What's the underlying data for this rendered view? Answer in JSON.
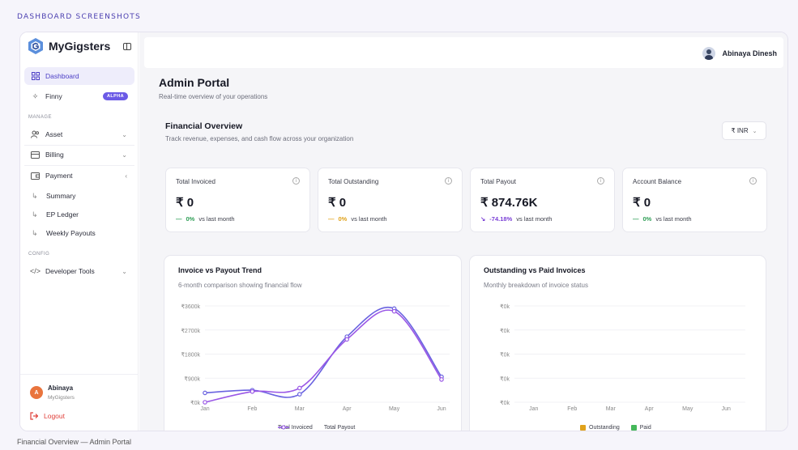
{
  "page_label": "DASHBOARD SCREENSHOTS",
  "caption": "Financial Overview — Admin Portal",
  "brand": {
    "name": "MyGigsters"
  },
  "sidebar": {
    "top_items": [
      {
        "label": "Dashboard",
        "icon": "grid-icon",
        "active": true
      },
      {
        "label": "Finny",
        "icon": "sparkle-icon",
        "badge": "ALPHA"
      }
    ],
    "manage_label": "MANAGE",
    "manage_items": [
      {
        "label": "Asset",
        "icon": "users-icon",
        "chevron": "⌄"
      },
      {
        "label": "Billing",
        "icon": "card-icon",
        "chevron": "⌄"
      },
      {
        "label": "Payment",
        "icon": "wallet-icon",
        "chevron": "‹"
      }
    ],
    "payment_sub": [
      {
        "label": "Summary"
      },
      {
        "label": "EP Ledger"
      },
      {
        "label": "Weekly Payouts"
      }
    ],
    "config_label": "CONFIG",
    "config_items": [
      {
        "label": "Developer Tools",
        "icon": "code-icon",
        "chevron": "⌄"
      }
    ],
    "user": {
      "initial": "A",
      "name": "Abinaya",
      "org": "MyGigsters"
    },
    "logout_label": "Logout"
  },
  "header": {
    "user_name": "Abinaya Dinesh"
  },
  "main": {
    "title": "Admin Portal",
    "subtitle": "Real-time overview of your operations",
    "section_title": "Financial Overview",
    "section_subtitle": "Track revenue, expenses, and cash flow across your organization",
    "currency": "₹ INR"
  },
  "kpis": [
    {
      "label": "Total Invoiced",
      "value": "₹ 0",
      "change": "0%",
      "change_icon": "—",
      "change_color": "#2e9e55",
      "vs": "vs last month"
    },
    {
      "label": "Total Outstanding",
      "value": "₹ 0",
      "change": "0%",
      "change_icon": "—",
      "change_color": "#e0a21b",
      "vs": "vs last month"
    },
    {
      "label": "Total Payout",
      "value": "₹ 874.76K",
      "change": "-74.18%",
      "change_icon": "↘",
      "change_color": "#7a3fd6",
      "vs": "vs last month"
    },
    {
      "label": "Account Balance",
      "value": "₹ 0",
      "change": "0%",
      "change_icon": "—",
      "change_color": "#2e9e55",
      "vs": "vs last month"
    }
  ],
  "chart_data": [
    {
      "type": "line",
      "title": "Invoice vs Payout Trend",
      "subtitle": "6-month comparison showing financial flow",
      "categories": [
        "Jan",
        "Feb",
        "Mar",
        "Apr",
        "May",
        "Jun"
      ],
      "y_ticks": [
        "₹3600k",
        "₹2700k",
        "₹1800k",
        "₹900k",
        "₹0k"
      ],
      "ylim": [
        0,
        3600
      ],
      "series": [
        {
          "name": "Total Invoiced",
          "color": "#6a63e0",
          "values": [
            350,
            450,
            300,
            2450,
            3500,
            950
          ]
        },
        {
          "name": "Total Payout",
          "color": "#9a57e6",
          "values": [
            0,
            400,
            530,
            2350,
            3400,
            850
          ]
        }
      ]
    },
    {
      "type": "bar",
      "title": "Outstanding vs Paid Invoices",
      "subtitle": "Monthly breakdown of invoice status",
      "categories": [
        "Jan",
        "Feb",
        "Mar",
        "Apr",
        "May",
        "Jun"
      ],
      "y_ticks": [
        "₹0k",
        "₹0k",
        "₹0k",
        "₹0k",
        "₹0k"
      ],
      "series": [
        {
          "name": "Outstanding",
          "color": "#e0a21b",
          "values": [
            0,
            0,
            0,
            0,
            0,
            0
          ]
        },
        {
          "name": "Paid",
          "color": "#45b85a",
          "values": [
            0,
            0,
            0,
            0,
            0,
            0
          ]
        }
      ]
    }
  ]
}
